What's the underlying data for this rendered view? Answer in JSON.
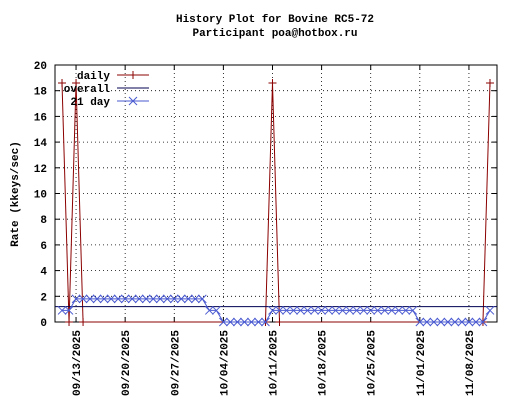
{
  "chart_data": {
    "type": "line",
    "title": "History Plot for Bovine RC5-72",
    "subtitle": "Participant poa@hotbox.ru",
    "y_label": "Rate (kkeys/sec)",
    "xlim": [
      "09/10/2025",
      "11/12/2025"
    ],
    "xticks": [
      "09/13/2025",
      "09/20/2025",
      "09/27/2025",
      "10/04/2025",
      "10/11/2025",
      "10/18/2025",
      "10/25/2025",
      "11/01/2025",
      "11/08/2025"
    ],
    "ylim": [
      0,
      20
    ],
    "yticks": [
      0,
      2,
      4,
      6,
      8,
      10,
      12,
      14,
      16,
      18,
      20
    ],
    "grid": true,
    "legend": "top-left",
    "series": [
      {
        "name": "daily",
        "color": "#8b0000",
        "marker": "plus",
        "x": [
          "09/11/2025",
          "09/12/2025",
          "09/13/2025",
          "09/14/2025",
          "10/10/2025",
          "10/11/2025",
          "10/12/2025",
          "11/10/2025",
          "11/11/2025"
        ],
        "values": [
          18.6,
          0,
          18.6,
          0,
          0,
          18.6,
          0,
          0,
          18.6
        ]
      },
      {
        "name": "overall",
        "color": "#000050",
        "marker": "none",
        "x": [
          "09/10/2025",
          "11/12/2025"
        ],
        "values": [
          1.2,
          1.2
        ]
      },
      {
        "name": "21 day",
        "color": "#4a5ad0",
        "marker": "cross",
        "x": [
          "09/11/2025",
          "09/12/2025",
          "09/13/2025",
          "09/14/2025",
          "09/15/2025",
          "09/16/2025",
          "09/17/2025",
          "09/18/2025",
          "09/19/2025",
          "09/20/2025",
          "09/21/2025",
          "09/22/2025",
          "09/23/2025",
          "09/24/2025",
          "09/25/2025",
          "09/26/2025",
          "09/27/2025",
          "09/28/2025",
          "09/29/2025",
          "09/30/2025",
          "10/01/2025",
          "10/02/2025",
          "10/03/2025",
          "10/04/2025",
          "10/05/2025",
          "10/06/2025",
          "10/07/2025",
          "10/08/2025",
          "10/09/2025",
          "10/10/2025",
          "10/11/2025",
          "10/12/2025",
          "10/13/2025",
          "10/14/2025",
          "10/15/2025",
          "10/16/2025",
          "10/17/2025",
          "10/18/2025",
          "10/19/2025",
          "10/20/2025",
          "10/21/2025",
          "10/22/2025",
          "10/23/2025",
          "10/24/2025",
          "10/25/2025",
          "10/26/2025",
          "10/27/2025",
          "10/28/2025",
          "10/29/2025",
          "10/30/2025",
          "10/31/2025",
          "11/01/2025",
          "11/02/2025",
          "11/03/2025",
          "11/04/2025",
          "11/05/2025",
          "11/06/2025",
          "11/07/2025",
          "11/08/2025",
          "11/09/2025",
          "11/10/2025",
          "11/11/2025"
        ],
        "values": [
          0.9,
          0.9,
          1.8,
          1.8,
          1.8,
          1.8,
          1.8,
          1.8,
          1.8,
          1.8,
          1.8,
          1.8,
          1.8,
          1.8,
          1.8,
          1.8,
          1.8,
          1.8,
          1.8,
          1.8,
          1.8,
          0.9,
          0.9,
          0,
          0,
          0,
          0,
          0,
          0,
          0,
          0.9,
          0.9,
          0.9,
          0.9,
          0.9,
          0.9,
          0.9,
          0.9,
          0.9,
          0.9,
          0.9,
          0.9,
          0.9,
          0.9,
          0.9,
          0.9,
          0.9,
          0.9,
          0.9,
          0.9,
          0.9,
          0,
          0,
          0,
          0,
          0,
          0,
          0,
          0,
          0,
          0,
          0.9
        ]
      }
    ]
  }
}
